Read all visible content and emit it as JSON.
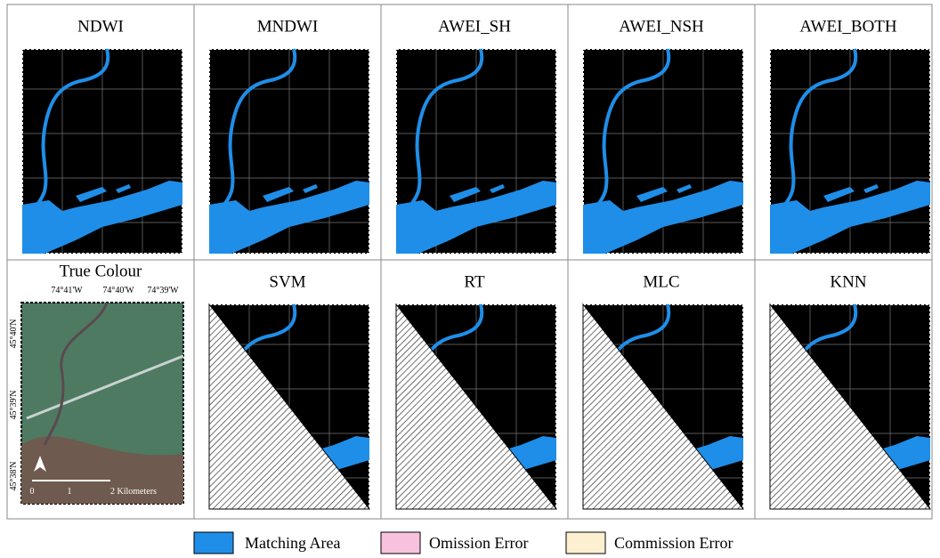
{
  "panels": [
    {
      "title": "NDWI"
    },
    {
      "title": "MNDWI"
    },
    {
      "title": "AWEI_SH"
    },
    {
      "title": "AWEI_NSH"
    },
    {
      "title": "AWEI_BOTH"
    },
    {
      "title": "SVM"
    },
    {
      "title": "RT"
    },
    {
      "title": "MLC"
    },
    {
      "title": "KNN"
    }
  ],
  "true_colour": {
    "title": "True Colour",
    "longitudes": [
      "74°41'W",
      "74°40'W",
      "74°39'W"
    ],
    "latitudes": [
      "45°40'N",
      "45°39'N",
      "45°38'N"
    ],
    "scale_labels": [
      "0",
      "1",
      "2 Kilometers"
    ]
  },
  "legend": [
    {
      "label": "Matching Area",
      "color": "#1f8ee8"
    },
    {
      "label": "Omission Error",
      "color": "#f9c2dc"
    },
    {
      "label": "Commission Error",
      "color": "#fdf0d0"
    }
  ]
}
